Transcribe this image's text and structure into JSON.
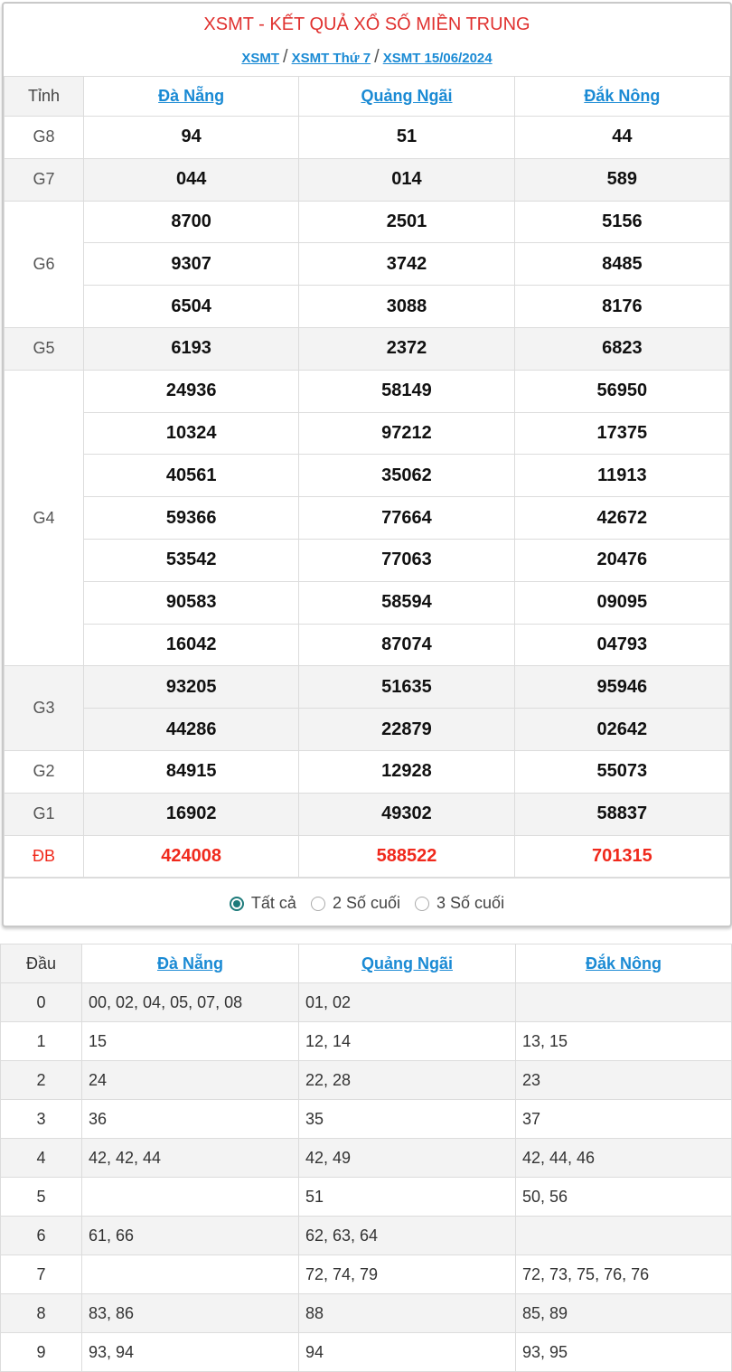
{
  "header": {
    "title": "XSMT - KẾT QUẢ XỔ SỐ MIỀN TRUNG",
    "breadcrumb": [
      "XSMT",
      "XSMT Thứ 7",
      "XSMT 15/06/2024"
    ],
    "separator": "/"
  },
  "results": {
    "label_header": "Tỉnh",
    "provinces": [
      "Đà Nẵng",
      "Quảng Ngãi",
      "Đắk Nông"
    ],
    "prizes": [
      {
        "name": "G8",
        "rows": [
          [
            "94",
            "51",
            "44"
          ]
        ]
      },
      {
        "name": "G7",
        "rows": [
          [
            "044",
            "014",
            "589"
          ]
        ]
      },
      {
        "name": "G6",
        "rows": [
          [
            "8700",
            "2501",
            "5156"
          ],
          [
            "9307",
            "3742",
            "8485"
          ],
          [
            "6504",
            "3088",
            "8176"
          ]
        ]
      },
      {
        "name": "G5",
        "rows": [
          [
            "6193",
            "2372",
            "6823"
          ]
        ]
      },
      {
        "name": "G4",
        "rows": [
          [
            "24936",
            "58149",
            "56950"
          ],
          [
            "10324",
            "97212",
            "17375"
          ],
          [
            "40561",
            "35062",
            "11913"
          ],
          [
            "59366",
            "77664",
            "42672"
          ],
          [
            "53542",
            "77063",
            "20476"
          ],
          [
            "90583",
            "58594",
            "09095"
          ],
          [
            "16042",
            "87074",
            "04793"
          ]
        ]
      },
      {
        "name": "G3",
        "rows": [
          [
            "93205",
            "51635",
            "95946"
          ],
          [
            "44286",
            "22879",
            "02642"
          ]
        ]
      },
      {
        "name": "G2",
        "rows": [
          [
            "84915",
            "12928",
            "55073"
          ]
        ]
      },
      {
        "name": "G1",
        "rows": [
          [
            "16902",
            "49302",
            "58837"
          ]
        ]
      },
      {
        "name": "ĐB",
        "rows": [
          [
            "424008",
            "588522",
            "701315"
          ]
        ],
        "special": true
      }
    ]
  },
  "filter": {
    "options": [
      "Tất cả",
      "2 Số cuối",
      "3 Số cuối"
    ],
    "selected": 0
  },
  "dau": {
    "label_header": "Đầu",
    "provinces": [
      "Đà Nẵng",
      "Quảng Ngãi",
      "Đắk Nông"
    ],
    "rows": [
      [
        "0",
        "00, 02, 04, 05, 07, 08",
        "01, 02",
        ""
      ],
      [
        "1",
        "15",
        "12, 14",
        "13, 15"
      ],
      [
        "2",
        "24",
        "22, 28",
        "23"
      ],
      [
        "3",
        "36",
        "35",
        "37"
      ],
      [
        "4",
        "42, 42, 44",
        "42, 49",
        "42, 44, 46"
      ],
      [
        "5",
        "",
        "51",
        "50, 56"
      ],
      [
        "6",
        "61, 66",
        "62, 63, 64",
        ""
      ],
      [
        "7",
        "",
        "72, 74, 79",
        "72, 73, 75, 76, 76"
      ],
      [
        "8",
        "83, 86",
        "88",
        "85, 89"
      ],
      [
        "9",
        "93, 94",
        "94",
        "93, 95"
      ]
    ]
  },
  "colors": {
    "title": "#e0312f",
    "link": "#1a8ad4",
    "special": "#f0291c",
    "radio": "#1d7a7a",
    "shade": "#f3f3f3"
  }
}
